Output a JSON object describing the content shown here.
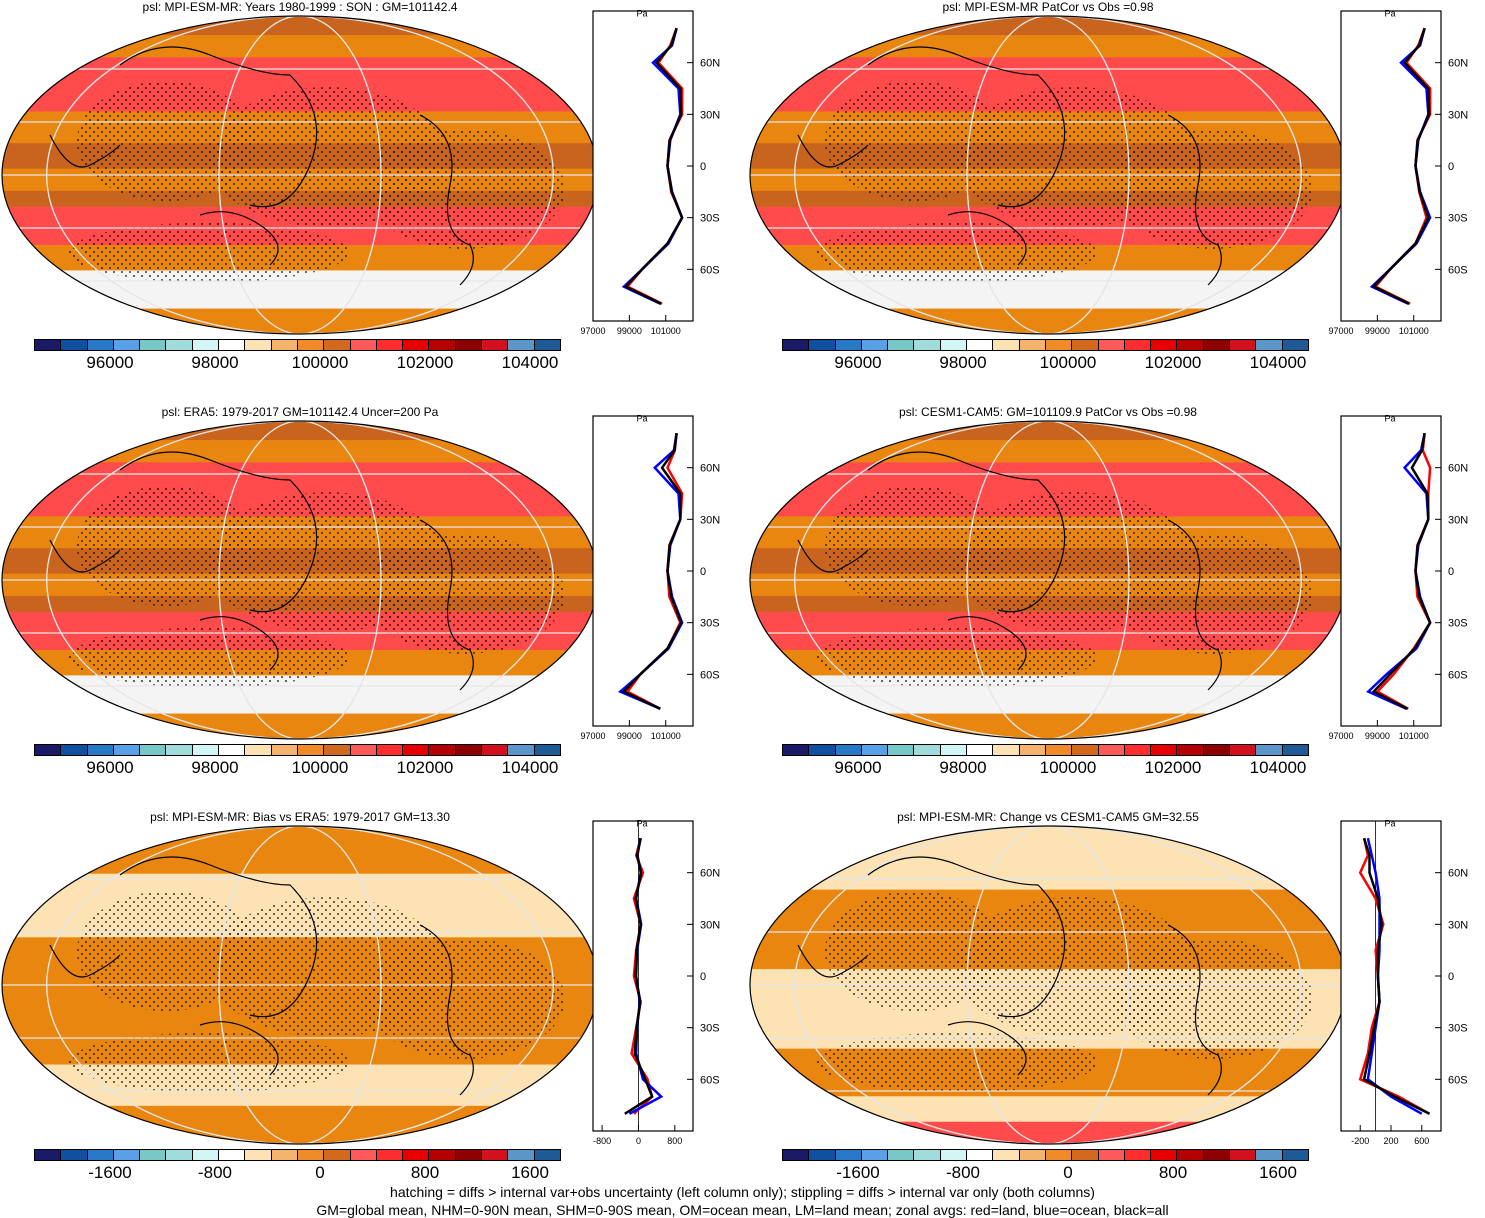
{
  "colors": {
    "fill_high": "#ff4b4b",
    "fill_mid": "#e9860f",
    "fill_brown": "#c8641e",
    "fill_pale": "#fde3b4",
    "fill_white": "#f4f4f4",
    "land_red": "#ff0000",
    "ocean_blue": "#0000ff",
    "all_black": "#000000",
    "colorbar": [
      "#1a1a66",
      "#1050a0",
      "#2878c8",
      "#5aa0e6",
      "#78c8c8",
      "#a0dcdc",
      "#d2f5f5",
      "#ffffff",
      "#fde3b4",
      "#f5b46e",
      "#f08c28",
      "#d2691e",
      "#ff5a5a",
      "#ff2d2d",
      "#e60000",
      "#b40000",
      "#8c0000",
      "#d2101e",
      "#5a96c8",
      "#1e5a96"
    ]
  },
  "panels": [
    {
      "title": "psl: MPI-ESM-MR: Years 1980-1999 : SON : GM=101142.4",
      "map_style": "abs",
      "unit": "Pa",
      "lat_labels": [
        "60N",
        "30N",
        "0",
        "30S",
        "60S"
      ],
      "x_ticks": [
        "97000",
        "99000",
        "101000"
      ],
      "cbar_labels": [
        "96000",
        "98000",
        "100000",
        "102000",
        "104000"
      ],
      "zonal": {
        "lat": [
          80,
          70,
          60,
          45,
          30,
          15,
          0,
          -15,
          -30,
          -45,
          -60,
          -70,
          -80
        ],
        "land": [
          101600,
          101250,
          100600,
          101900,
          101900,
          101200,
          101100,
          101300,
          101900,
          101100,
          99700,
          98900,
          100800
        ],
        "ocean": [
          101600,
          101350,
          100300,
          101700,
          101800,
          101250,
          101100,
          101350,
          101900,
          101150,
          99700,
          98700,
          100700
        ],
        "all": [
          101600,
          101300,
          100500,
          101800,
          101850,
          101220,
          101100,
          101330,
          101900,
          101100,
          99700,
          98800,
          100750
        ],
        "xmin": 97000,
        "xmax": 102500
      }
    },
    {
      "title": "psl: MPI-ESM-MR PatCor vs Obs =0.98",
      "map_style": "abs",
      "unit": "Pa",
      "lat_labels": [
        "60N",
        "30N",
        "0",
        "30S",
        "60S"
      ],
      "x_ticks": [
        "97000",
        "99000",
        "101000"
      ],
      "cbar_labels": [
        "96000",
        "98000",
        "100000",
        "102000",
        "104000"
      ],
      "zonal": {
        "lat": [
          80,
          70,
          60,
          45,
          30,
          15,
          0,
          -15,
          -30,
          -45,
          -60,
          -70,
          -80
        ],
        "land": [
          101600,
          101250,
          100600,
          101900,
          101900,
          101200,
          101100,
          101300,
          101700,
          101100,
          99700,
          98900,
          100800
        ],
        "ocean": [
          101600,
          101350,
          100300,
          101700,
          101800,
          101250,
          101100,
          101350,
          101900,
          101150,
          99700,
          98700,
          100700
        ],
        "all": [
          101600,
          101300,
          100500,
          101800,
          101850,
          101220,
          101100,
          101330,
          101800,
          101100,
          99700,
          98800,
          100750
        ],
        "xmin": 97000,
        "xmax": 102500
      }
    },
    {
      "title": "psl: ERA5: 1979-2017 GM=101142.4 Uncer=200 Pa",
      "map_style": "abs",
      "unit": "Pa",
      "lat_labels": [
        "60N",
        "30N",
        "0",
        "30S",
        "60S"
      ],
      "x_ticks": [
        "97000",
        "99000",
        "101000"
      ],
      "cbar_labels": [
        "96000",
        "98000",
        "100000",
        "102000",
        "104000"
      ],
      "zonal": {
        "lat": [
          80,
          70,
          60,
          45,
          30,
          15,
          0,
          -15,
          -30,
          -45,
          -60,
          -70,
          -80
        ],
        "land": [
          101600,
          101500,
          101100,
          101900,
          101800,
          101200,
          101100,
          101200,
          101800,
          101100,
          99600,
          98900,
          100700
        ],
        "ocean": [
          101600,
          101450,
          100400,
          101700,
          101800,
          101250,
          101100,
          101350,
          101900,
          101150,
          99600,
          98500,
          100700
        ],
        "all": [
          101600,
          101480,
          100800,
          101800,
          101800,
          101220,
          101100,
          101300,
          101850,
          101100,
          99600,
          98700,
          100700
        ],
        "xmin": 97000,
        "xmax": 102500
      }
    },
    {
      "title": "psl: CESM1-CAM5: GM=101109.9 PatCor vs Obs =0.98",
      "map_style": "abs",
      "unit": "Pa",
      "lat_labels": [
        "60N",
        "30N",
        "0",
        "30S",
        "60S"
      ],
      "x_ticks": [
        "97000",
        "99000",
        "101000"
      ],
      "cbar_labels": [
        "96000",
        "98000",
        "100000",
        "102000",
        "104000"
      ],
      "zonal": {
        "lat": [
          80,
          70,
          60,
          45,
          30,
          15,
          0,
          -15,
          -30,
          -45,
          -60,
          -70,
          -80
        ],
        "land": [
          101600,
          101500,
          101900,
          101800,
          101800,
          101200,
          101100,
          101200,
          101900,
          101000,
          99900,
          99000,
          100700
        ],
        "ocean": [
          101600,
          101400,
          100500,
          101700,
          101800,
          101250,
          101100,
          101350,
          101900,
          101150,
          99500,
          98500,
          100600
        ],
        "all": [
          101600,
          101450,
          100900,
          101750,
          101800,
          101220,
          101100,
          101300,
          101900,
          101050,
          99700,
          98800,
          100650
        ],
        "xmin": 97000,
        "xmax": 102500
      }
    },
    {
      "title": "psl: MPI-ESM-MR: Bias vs ERA5: 1979-2017  GM=13.30",
      "map_style": "bias",
      "unit": "Pa",
      "lat_labels": [
        "60N",
        "30N",
        "0",
        "30S",
        "60S"
      ],
      "x_ticks": [
        "-800",
        "0",
        "800"
      ],
      "cbar_labels": [
        "-1600",
        "-800",
        "0",
        "800",
        "1600"
      ],
      "zonal": {
        "lat": [
          80,
          70,
          60,
          45,
          30,
          15,
          0,
          -15,
          -30,
          -45,
          -60,
          -70,
          -80
        ],
        "land": [
          50,
          -50,
          100,
          -100,
          50,
          -50,
          -100,
          50,
          -50,
          -150,
          200,
          300,
          -100
        ],
        "ocean": [
          40,
          -20,
          50,
          -50,
          60,
          -30,
          -50,
          30,
          -30,
          -50,
          100,
          500,
          -200
        ],
        "all": [
          50,
          -30,
          60,
          -60,
          50,
          -40,
          -60,
          40,
          -40,
          -80,
          150,
          300,
          -300
        ],
        "xmin": -1000,
        "xmax": 1200
      }
    },
    {
      "title": "psl: MPI-ESM-MR: Change vs CESM1-CAM5 GM=32.55",
      "map_style": "change",
      "unit": "Pa",
      "lat_labels": [
        "60N",
        "30N",
        "0",
        "30S",
        "60S"
      ],
      "x_ticks": [
        "-200",
        "200",
        "600"
      ],
      "cbar_labels": [
        "-1600",
        "-800",
        "0",
        "800",
        "1600"
      ],
      "zonal": {
        "lat": [
          80,
          70,
          60,
          45,
          30,
          15,
          0,
          -15,
          -30,
          -45,
          -60,
          -70,
          -80
        ],
        "land": [
          -150,
          -100,
          -200,
          0,
          100,
          0,
          30,
          50,
          -50,
          -100,
          -200,
          300,
          700
        ],
        "ocean": [
          -100,
          -50,
          0,
          50,
          50,
          50,
          30,
          50,
          0,
          -50,
          -100,
          200,
          600
        ],
        "all": [
          -150,
          -80,
          -80,
          30,
          80,
          30,
          30,
          50,
          -20,
          -80,
          -150,
          250,
          700
        ],
        "xmin": -450,
        "xmax": 850
      }
    }
  ],
  "footer": {
    "line1": "hatching = diffs > internal var+obs uncertainty (left column only); stippling = diffs > internal var only (both columns)",
    "line2": "GM=global mean, NHM=0-90N mean, SHM=0-90S mean, OM=ocean mean, LM=land mean; zonal avgs: red=land, blue=ocean, black=all"
  }
}
